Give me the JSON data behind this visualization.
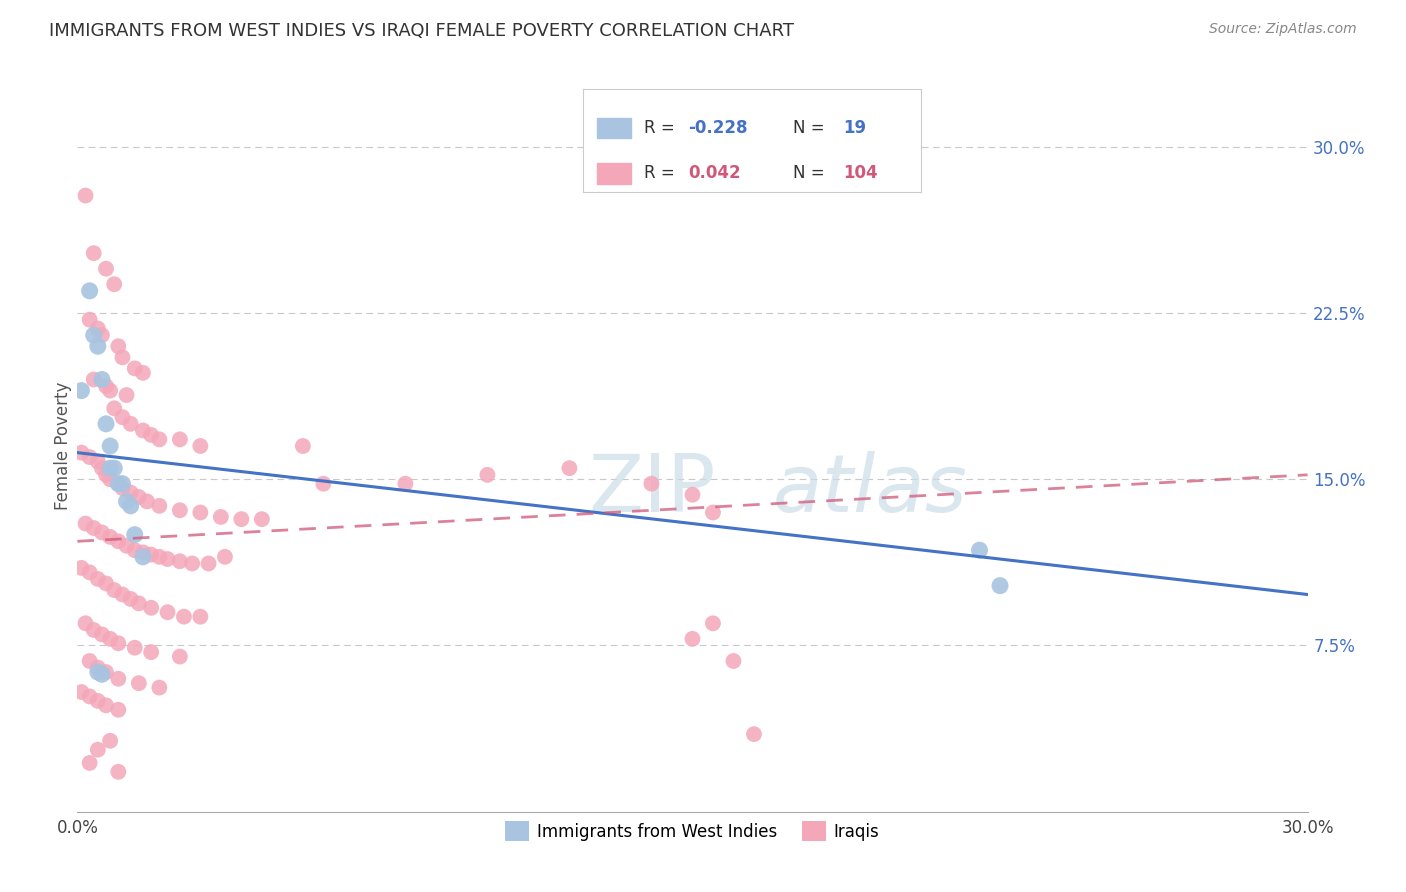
{
  "title": "IMMIGRANTS FROM WEST INDIES VS IRAQI FEMALE POVERTY CORRELATION CHART",
  "source": "Source: ZipAtlas.com",
  "ylabel": "Female Poverty",
  "right_yticks": [
    "30.0%",
    "22.5%",
    "15.0%",
    "7.5%"
  ],
  "right_ytick_vals": [
    0.3,
    0.225,
    0.15,
    0.075
  ],
  "xmin": 0.0,
  "xmax": 0.3,
  "ymin": 0.0,
  "ymax": 0.33,
  "blue_color": "#a8c4e0",
  "pink_color": "#f4a7b9",
  "trendline_blue_color": "#4472c4",
  "trendline_pink_color": "#d05878",
  "watermark_color": "#ccdde8",
  "blue_scatter": [
    [
      0.001,
      0.19
    ],
    [
      0.003,
      0.235
    ],
    [
      0.004,
      0.215
    ],
    [
      0.005,
      0.21
    ],
    [
      0.006,
      0.195
    ],
    [
      0.007,
      0.175
    ],
    [
      0.008,
      0.165
    ],
    [
      0.008,
      0.155
    ],
    [
      0.009,
      0.155
    ],
    [
      0.01,
      0.148
    ],
    [
      0.011,
      0.148
    ],
    [
      0.012,
      0.14
    ],
    [
      0.013,
      0.138
    ],
    [
      0.014,
      0.125
    ],
    [
      0.016,
      0.115
    ],
    [
      0.005,
      0.063
    ],
    [
      0.006,
      0.062
    ],
    [
      0.22,
      0.118
    ],
    [
      0.225,
      0.102
    ]
  ],
  "pink_scatter": [
    [
      0.002,
      0.278
    ],
    [
      0.004,
      0.252
    ],
    [
      0.007,
      0.245
    ],
    [
      0.009,
      0.238
    ],
    [
      0.003,
      0.222
    ],
    [
      0.005,
      0.218
    ],
    [
      0.006,
      0.215
    ],
    [
      0.01,
      0.21
    ],
    [
      0.011,
      0.205
    ],
    [
      0.014,
      0.2
    ],
    [
      0.016,
      0.198
    ],
    [
      0.004,
      0.195
    ],
    [
      0.007,
      0.192
    ],
    [
      0.008,
      0.19
    ],
    [
      0.012,
      0.188
    ],
    [
      0.009,
      0.182
    ],
    [
      0.011,
      0.178
    ],
    [
      0.013,
      0.175
    ],
    [
      0.016,
      0.172
    ],
    [
      0.018,
      0.17
    ],
    [
      0.02,
      0.168
    ],
    [
      0.025,
      0.168
    ],
    [
      0.03,
      0.165
    ],
    [
      0.055,
      0.165
    ],
    [
      0.001,
      0.162
    ],
    [
      0.003,
      0.16
    ],
    [
      0.005,
      0.158
    ],
    [
      0.006,
      0.155
    ],
    [
      0.007,
      0.152
    ],
    [
      0.008,
      0.15
    ],
    [
      0.01,
      0.148
    ],
    [
      0.011,
      0.146
    ],
    [
      0.013,
      0.144
    ],
    [
      0.015,
      0.142
    ],
    [
      0.017,
      0.14
    ],
    [
      0.02,
      0.138
    ],
    [
      0.025,
      0.136
    ],
    [
      0.03,
      0.135
    ],
    [
      0.035,
      0.133
    ],
    [
      0.04,
      0.132
    ],
    [
      0.045,
      0.132
    ],
    [
      0.002,
      0.13
    ],
    [
      0.004,
      0.128
    ],
    [
      0.006,
      0.126
    ],
    [
      0.008,
      0.124
    ],
    [
      0.01,
      0.122
    ],
    [
      0.012,
      0.12
    ],
    [
      0.014,
      0.118
    ],
    [
      0.016,
      0.117
    ],
    [
      0.018,
      0.116
    ],
    [
      0.02,
      0.115
    ],
    [
      0.022,
      0.114
    ],
    [
      0.025,
      0.113
    ],
    [
      0.028,
      0.112
    ],
    [
      0.032,
      0.112
    ],
    [
      0.036,
      0.115
    ],
    [
      0.001,
      0.11
    ],
    [
      0.003,
      0.108
    ],
    [
      0.005,
      0.105
    ],
    [
      0.007,
      0.103
    ],
    [
      0.009,
      0.1
    ],
    [
      0.011,
      0.098
    ],
    [
      0.013,
      0.096
    ],
    [
      0.015,
      0.094
    ],
    [
      0.018,
      0.092
    ],
    [
      0.022,
      0.09
    ],
    [
      0.026,
      0.088
    ],
    [
      0.03,
      0.088
    ],
    [
      0.002,
      0.085
    ],
    [
      0.004,
      0.082
    ],
    [
      0.006,
      0.08
    ],
    [
      0.008,
      0.078
    ],
    [
      0.01,
      0.076
    ],
    [
      0.014,
      0.074
    ],
    [
      0.018,
      0.072
    ],
    [
      0.025,
      0.07
    ],
    [
      0.003,
      0.068
    ],
    [
      0.005,
      0.065
    ],
    [
      0.007,
      0.063
    ],
    [
      0.01,
      0.06
    ],
    [
      0.015,
      0.058
    ],
    [
      0.02,
      0.056
    ],
    [
      0.001,
      0.054
    ],
    [
      0.003,
      0.052
    ],
    [
      0.005,
      0.05
    ],
    [
      0.007,
      0.048
    ],
    [
      0.01,
      0.046
    ],
    [
      0.06,
      0.148
    ],
    [
      0.08,
      0.148
    ],
    [
      0.1,
      0.152
    ],
    [
      0.12,
      0.155
    ],
    [
      0.14,
      0.148
    ],
    [
      0.15,
      0.143
    ],
    [
      0.155,
      0.135
    ],
    [
      0.16,
      0.068
    ],
    [
      0.15,
      0.078
    ],
    [
      0.155,
      0.085
    ],
    [
      0.165,
      0.035
    ],
    [
      0.003,
      0.022
    ],
    [
      0.005,
      0.028
    ],
    [
      0.008,
      0.032
    ],
    [
      0.01,
      0.018
    ]
  ],
  "blue_trendline": [
    [
      0.0,
      0.162
    ],
    [
      0.3,
      0.098
    ]
  ],
  "pink_trendline": [
    [
      0.0,
      0.122
    ],
    [
      0.3,
      0.152
    ]
  ]
}
